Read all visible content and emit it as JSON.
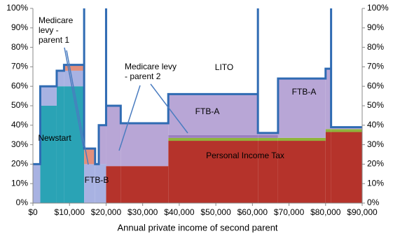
{
  "chart_data": {
    "type": "stacked-step-area",
    "x_label": "Annual private income of second parent",
    "xlim": [
      0,
      90000
    ],
    "xticks": [
      {
        "value": 0,
        "label": "$0"
      },
      {
        "value": 10000,
        "label": "$10,000"
      },
      {
        "value": 20000,
        "label": "$20,000"
      },
      {
        "value": 30000,
        "label": "$30,000"
      },
      {
        "value": 40000,
        "label": "$40,000"
      },
      {
        "value": 50000,
        "label": "$50,000"
      },
      {
        "value": 60000,
        "label": "$60,000"
      },
      {
        "value": 70000,
        "label": "$70,000"
      },
      {
        "value": 80000,
        "label": "$80,000"
      },
      {
        "value": 90000,
        "label": "$90,000"
      }
    ],
    "ylim": [
      0,
      100
    ],
    "yticks": [
      {
        "value": 0,
        "label": "0%"
      },
      {
        "value": 10,
        "label": "10%"
      },
      {
        "value": 20,
        "label": "20%"
      },
      {
        "value": 30,
        "label": "30%"
      },
      {
        "value": 40,
        "label": "40%"
      },
      {
        "value": 50,
        "label": "50%"
      },
      {
        "value": 60,
        "label": "60%"
      },
      {
        "value": 70,
        "label": "70%"
      },
      {
        "value": 80,
        "label": "80%"
      },
      {
        "value": 90,
        "label": "90%"
      },
      {
        "value": 100,
        "label": "100%"
      }
    ],
    "y2lim": [
      0,
      100
    ],
    "y2ticks": [
      {
        "value": 0,
        "label": "0%"
      },
      {
        "value": 10,
        "label": "10%"
      },
      {
        "value": 20,
        "label": "20%"
      },
      {
        "value": 30,
        "label": "30%"
      },
      {
        "value": 40,
        "label": "40%"
      },
      {
        "value": 50,
        "label": "50%"
      },
      {
        "value": 60,
        "label": "60%"
      },
      {
        "value": 70,
        "label": "70%"
      },
      {
        "value": 80,
        "label": "80%"
      },
      {
        "value": 90,
        "label": "90%"
      },
      {
        "value": 100,
        "label": "100%"
      }
    ],
    "x": [
      0,
      2000,
      6500,
      8500,
      14000,
      17000,
      18000,
      20000,
      24000,
      37000,
      61500,
      67000,
      80000,
      81500
    ],
    "series": [
      {
        "name": "Personal Income Tax",
        "color": "#b5332b",
        "values": [
          0,
          0,
          0,
          0,
          0,
          0,
          0,
          19,
          19,
          32,
          32,
          32,
          36.5,
          36.5
        ]
      },
      {
        "name": "Medicare levy - parent 2",
        "color": "#8fb43c",
        "values": [
          0,
          0,
          0,
          0,
          0,
          0,
          0,
          0,
          0,
          1.5,
          1.5,
          1.5,
          1.5,
          1.5
        ]
      },
      {
        "name": "LITO",
        "color": "#9b7fc0",
        "values": [
          0,
          0,
          0,
          0,
          0,
          0,
          0,
          0,
          0,
          1.5,
          1.5,
          0,
          0,
          0
        ]
      },
      {
        "name": "Newstart",
        "color": "#2aa3b5",
        "values": [
          0,
          50,
          60,
          60,
          0,
          0,
          0,
          0,
          0,
          0,
          0,
          0,
          0,
          0
        ]
      },
      {
        "name": "FTB-B",
        "color": "#a8b2e2",
        "values": [
          20,
          10,
          8,
          8,
          20,
          20,
          20,
          0,
          0,
          0,
          0,
          0,
          0,
          0
        ]
      },
      {
        "name": "Medicare levy - parent 1",
        "color": "#e28f7c",
        "values": [
          0,
          0,
          0,
          3,
          8,
          0,
          0,
          0,
          0,
          0,
          0,
          0,
          0,
          0
        ]
      },
      {
        "name": "FTB-A",
        "color": "#b8a6d6",
        "values": [
          0,
          0,
          0,
          0,
          0,
          0,
          20,
          31,
          22,
          21,
          1,
          30,
          31,
          1
        ]
      }
    ],
    "outline": {
      "color": "#2f6bb3",
      "x": [
        0,
        2000,
        2000,
        6500,
        6500,
        8500,
        8500,
        14000,
        14000,
        14000,
        17000,
        17000,
        18000,
        18000,
        20000,
        20000,
        20000,
        24000,
        24000,
        37000,
        37000,
        61500,
        61500,
        61500,
        67000,
        67000,
        80000,
        80000,
        81500,
        81500,
        81500,
        90000
      ],
      "values": [
        20,
        20,
        60,
        60,
        68,
        68,
        71,
        71,
        100,
        28,
        28,
        20,
        20,
        40,
        40,
        100,
        50,
        50,
        41,
        41,
        56,
        56,
        100,
        36,
        36,
        64,
        64,
        69,
        69,
        100,
        39,
        39
      ]
    },
    "annotations": [
      {
        "lines": [
          "Medicare",
          "levy -",
          "parent 1"
        ]
      },
      {
        "lines": [
          "Medicare levy",
          "- parent 2"
        ]
      }
    ]
  }
}
